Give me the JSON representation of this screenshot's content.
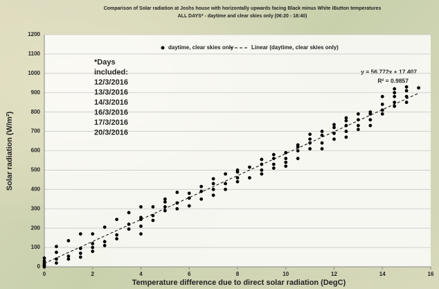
{
  "chart_data": {
    "type": "scatter",
    "title": [
      "Comparison of Solar radiation at Joshs house with horizontally upwards facing Black minus White iButton temperatures",
      "ALL DAYS* - daytime and clear skies only (06:20 - 18:40)"
    ],
    "xlabel": "Temperature difference due to direct solar radiation (DegC)",
    "ylabel": "Solar radiation (W/m²)",
    "xlim": [
      0,
      16
    ],
    "ylim": [
      0,
      1200
    ],
    "xticks": [
      0,
      2,
      4,
      6,
      8,
      10,
      12,
      14,
      16
    ],
    "yticks": [
      0,
      100,
      200,
      300,
      400,
      500,
      600,
      700,
      800,
      900,
      1000,
      1100,
      1200
    ],
    "grid": true,
    "x": [
      0,
      0,
      0,
      0,
      0,
      0,
      0.5,
      0.5,
      0.5,
      0.5,
      1,
      1,
      1,
      1.5,
      1.5,
      1.5,
      1.5,
      2,
      2,
      2,
      2,
      2.5,
      2.5,
      2.5,
      3,
      3,
      3,
      3.5,
      3.5,
      3.5,
      4,
      4,
      4,
      4,
      4,
      4.5,
      4.5,
      4.5,
      5,
      5,
      5,
      5,
      5.5,
      5.5,
      5.5,
      6,
      6,
      6,
      6.5,
      6.5,
      6.5,
      7,
      7,
      7,
      7,
      7.5,
      7.5,
      7.5,
      8,
      8,
      8,
      8,
      8.5,
      8.5,
      9,
      9,
      9,
      9,
      9.5,
      9.5,
      9.5,
      9.5,
      10,
      10,
      10,
      10,
      10.5,
      10.5,
      10.5,
      10.5,
      11,
      11,
      11,
      11,
      11.5,
      11.5,
      11.5,
      11.5,
      12,
      12,
      12,
      12,
      12.5,
      12.5,
      12.5,
      12.5,
      12.5,
      13,
      13,
      13,
      13,
      13.5,
      13.5,
      13.5,
      13.5,
      14,
      14,
      14,
      14,
      14.5,
      14.5,
      14.5,
      14.5,
      14.5,
      15,
      15,
      15,
      15,
      15.5
    ],
    "series": [
      {
        "name": "daytime, clear skies only",
        "color": "#000000",
        "values": [
          10,
          20,
          30,
          45,
          5,
          0,
          20,
          40,
          75,
          105,
          40,
          55,
          135,
          50,
          70,
          95,
          170,
          80,
          100,
          120,
          170,
          110,
          130,
          205,
          145,
          165,
          245,
          195,
          220,
          280,
          170,
          210,
          245,
          255,
          310,
          240,
          265,
          310,
          290,
          310,
          335,
          350,
          300,
          330,
          385,
          315,
          355,
          380,
          350,
          390,
          415,
          370,
          400,
          430,
          455,
          400,
          430,
          480,
          440,
          460,
          490,
          500,
          460,
          515,
          480,
          500,
          530,
          555,
          510,
          530,
          560,
          580,
          520,
          540,
          560,
          590,
          560,
          600,
          620,
          630,
          610,
          640,
          660,
          685,
          610,
          640,
          680,
          700,
          660,
          690,
          720,
          735,
          670,
          700,
          730,
          755,
          770,
          710,
          730,
          760,
          790,
          730,
          760,
          790,
          800,
          790,
          810,
          840,
          880,
          830,
          850,
          880,
          900,
          920,
          850,
          880,
          910,
          930,
          925
        ]
      }
    ],
    "trendline": {
      "name": "Linear (daytime, clear skies only)",
      "color": "#000000",
      "x": [
        0,
        15.5
      ],
      "values": [
        17.4,
        897.4
      ],
      "equation": "y = 56.772x + 17.407",
      "r2": "R² = 0.9857"
    },
    "annotation": [
      "*Days",
      "included:",
      "12/3/2016",
      "13/3/2016",
      "14/3/2016",
      "16/3/2016",
      "17/3/2016",
      "20/3/2016"
    ]
  }
}
